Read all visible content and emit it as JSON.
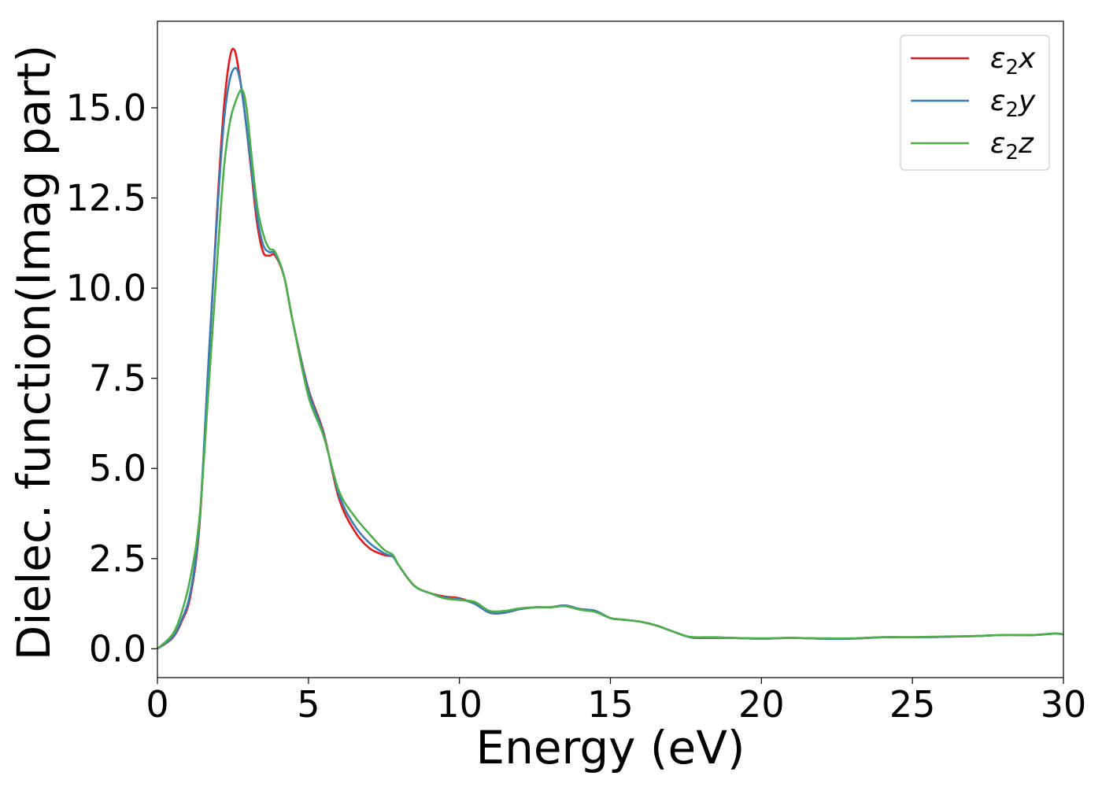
{
  "chart_data": {
    "type": "line",
    "title": "",
    "xlabel": "Energy (eV)",
    "ylabel": "Dielec. function(Imag part)",
    "xlim": [
      0,
      30
    ],
    "ylim": [
      -0.8,
      17.4
    ],
    "xticks": [
      0,
      5,
      10,
      15,
      20,
      25,
      30
    ],
    "xtick_labels": [
      "0",
      "5",
      "10",
      "15",
      "20",
      "25",
      "30"
    ],
    "yticks": [
      0.0,
      2.5,
      5.0,
      7.5,
      10.0,
      12.5,
      15.0
    ],
    "ytick_labels": [
      "0.0",
      "2.5",
      "5.0",
      "7.5",
      "10.0",
      "12.5",
      "15.0"
    ],
    "grid": false,
    "legend_position": "upper-right",
    "series": [
      {
        "name": "ε2x",
        "legend_main": "ε",
        "legend_sub": "2",
        "legend_tail": "x",
        "color": "#e41a1c",
        "x": [
          0,
          0.5,
          0.8,
          1.1,
          1.4,
          1.7,
          2.0,
          2.2,
          2.4,
          2.55,
          2.7,
          2.9,
          3.1,
          3.3,
          3.5,
          3.7,
          3.9,
          4.2,
          4.5,
          5.0,
          5.5,
          6.0,
          6.5,
          7.0,
          7.5,
          7.8,
          8.0,
          8.5,
          9.0,
          9.5,
          10.0,
          10.5,
          11.0,
          11.5,
          12.0,
          12.5,
          13.0,
          13.5,
          14.0,
          14.5,
          15.0,
          15.5,
          16.0,
          16.5,
          17.0,
          17.5,
          17.8,
          18.5,
          19.0,
          20.0,
          21.0,
          22.0,
          23.0,
          24.0,
          25.0,
          26.0,
          27.0,
          28.0,
          29.0,
          29.7,
          30.0
        ],
        "y": [
          0.0,
          0.3,
          0.75,
          1.5,
          3.5,
          8.0,
          12.5,
          15.0,
          16.4,
          16.6,
          16.0,
          14.8,
          13.3,
          11.8,
          11.0,
          10.9,
          10.9,
          10.3,
          9.0,
          7.2,
          6.0,
          4.2,
          3.3,
          2.8,
          2.6,
          2.55,
          2.3,
          1.75,
          1.55,
          1.45,
          1.4,
          1.25,
          1.0,
          1.0,
          1.1,
          1.15,
          1.15,
          1.2,
          1.1,
          1.05,
          0.85,
          0.8,
          0.75,
          0.65,
          0.5,
          0.35,
          0.3,
          0.3,
          0.3,
          0.28,
          0.3,
          0.28,
          0.28,
          0.32,
          0.32,
          0.33,
          0.35,
          0.38,
          0.38,
          0.42,
          0.4
        ]
      },
      {
        "name": "ε2y",
        "legend_main": "ε",
        "legend_sub": "2",
        "legend_tail": "y",
        "color": "#377eb8",
        "x": [
          0,
          0.5,
          0.8,
          1.1,
          1.4,
          1.7,
          2.0,
          2.2,
          2.4,
          2.6,
          2.75,
          2.9,
          3.1,
          3.3,
          3.5,
          3.7,
          3.9,
          4.2,
          4.5,
          5.0,
          5.5,
          6.0,
          6.5,
          7.0,
          7.5,
          7.8,
          8.0,
          8.5,
          9.0,
          9.5,
          10.0,
          10.5,
          11.0,
          11.5,
          12.0,
          12.5,
          13.0,
          13.5,
          14.0,
          14.5,
          15.0,
          15.5,
          16.0,
          16.5,
          17.0,
          17.5,
          17.8,
          18.5,
          19.0,
          20.0,
          21.0,
          22.0,
          23.0,
          24.0,
          25.0,
          26.0,
          27.0,
          28.0,
          29.0,
          29.7,
          30.0
        ],
        "y": [
          0.0,
          0.32,
          0.8,
          1.6,
          3.6,
          8.1,
          12.3,
          14.6,
          15.8,
          16.1,
          15.7,
          14.8,
          13.4,
          12.0,
          11.2,
          11.0,
          10.95,
          10.3,
          9.0,
          7.15,
          5.95,
          4.3,
          3.45,
          2.95,
          2.65,
          2.55,
          2.3,
          1.75,
          1.55,
          1.42,
          1.38,
          1.25,
          1.0,
          1.0,
          1.1,
          1.15,
          1.15,
          1.2,
          1.1,
          1.05,
          0.85,
          0.8,
          0.75,
          0.65,
          0.5,
          0.35,
          0.3,
          0.3,
          0.3,
          0.28,
          0.3,
          0.28,
          0.28,
          0.32,
          0.32,
          0.33,
          0.35,
          0.38,
          0.38,
          0.42,
          0.4
        ]
      },
      {
        "name": "ε2z",
        "legend_main": "ε",
        "legend_sub": "2",
        "legend_tail": "z",
        "color": "#4daf4a",
        "x": [
          0,
          0.5,
          0.8,
          1.1,
          1.4,
          1.7,
          2.0,
          2.2,
          2.4,
          2.6,
          2.8,
          2.95,
          3.1,
          3.3,
          3.5,
          3.7,
          3.9,
          4.2,
          4.5,
          5.0,
          5.5,
          6.0,
          6.5,
          7.0,
          7.5,
          7.8,
          8.0,
          8.5,
          9.0,
          9.5,
          10.0,
          10.5,
          11.0,
          11.5,
          12.0,
          12.5,
          13.0,
          13.5,
          14.0,
          14.5,
          15.0,
          15.5,
          16.0,
          16.5,
          17.0,
          17.5,
          17.8,
          18.5,
          19.0,
          20.0,
          21.0,
          22.0,
          23.0,
          24.0,
          25.0,
          26.0,
          27.0,
          28.0,
          29.0,
          29.7,
          30.0
        ],
        "y": [
          0.0,
          0.4,
          1.0,
          2.0,
          3.7,
          7.3,
          11.0,
          13.3,
          14.6,
          15.2,
          15.5,
          15.0,
          13.8,
          12.3,
          11.5,
          11.1,
          11.0,
          10.3,
          9.0,
          7.0,
          5.9,
          4.4,
          3.7,
          3.2,
          2.75,
          2.6,
          2.3,
          1.75,
          1.55,
          1.4,
          1.35,
          1.3,
          1.05,
          1.05,
          1.12,
          1.15,
          1.15,
          1.18,
          1.08,
          1.02,
          0.85,
          0.8,
          0.75,
          0.65,
          0.5,
          0.35,
          0.32,
          0.32,
          0.3,
          0.29,
          0.3,
          0.29,
          0.29,
          0.32,
          0.32,
          0.34,
          0.35,
          0.38,
          0.38,
          0.42,
          0.4
        ]
      }
    ]
  }
}
